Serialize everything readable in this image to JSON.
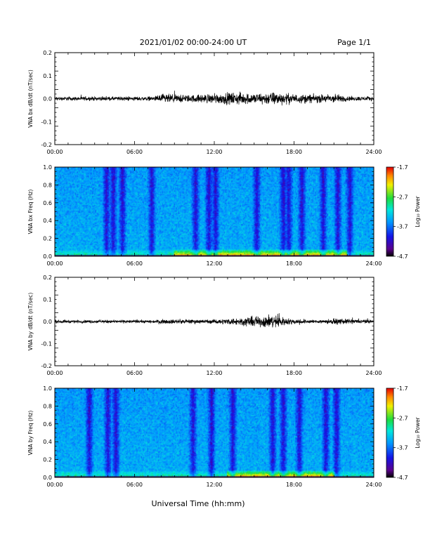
{
  "header": {
    "title": "2021/01/02  00:00-24:00 UT",
    "page": "Page 1/1"
  },
  "colorbar": {
    "label": "Log₁₀ Power",
    "ticks": [
      "-1.7",
      "-2.7",
      "-3.7",
      "-4.7"
    ],
    "range": [
      -4.7,
      -1.7
    ]
  },
  "xaxis": {
    "label": "Universal Time (hh:mm)",
    "ticks": [
      "00:00",
      "06:00",
      "12:00",
      "18:00",
      "24:00"
    ],
    "range_hours": [
      0,
      24
    ]
  },
  "chart_data": [
    {
      "type": "line",
      "ylabel": "VNA bx dB/dt (nT/sec)",
      "ylim": [
        -0.2,
        0.2
      ],
      "yticks": [
        "0.2",
        "0.1",
        "0.0",
        "-0.1",
        "-0.2"
      ],
      "xlim": [
        0,
        24
      ],
      "envelope": {
        "x_hours": [
          0,
          4,
          7.5,
          8,
          10,
          12,
          13.5,
          15,
          16.5,
          18,
          20,
          21,
          22,
          24
        ],
        "amplitude": [
          0.012,
          0.012,
          0.013,
          0.03,
          0.022,
          0.03,
          0.038,
          0.033,
          0.04,
          0.028,
          0.025,
          0.03,
          0.015,
          0.012
        ]
      }
    },
    {
      "type": "heatmap",
      "ylabel": "VNA bx Freq (Hz)",
      "ylim": [
        0,
        1.0
      ],
      "yticks": [
        "1.0",
        "0.8",
        "0.6",
        "0.4",
        "0.2",
        "0.0"
      ],
      "xlim": [
        0,
        24
      ],
      "colorbar_range": [
        -4.7,
        -1.7
      ],
      "dark_bands_hours": [
        3.9,
        4.4,
        5.1,
        7.3,
        10.6,
        11.6,
        12.1,
        15.2,
        17.2,
        17.6,
        18.6,
        20.2,
        21.3,
        22.2
      ],
      "low_freq_enhancement_hours": [
        9,
        22
      ]
    },
    {
      "type": "line",
      "ylabel": "VNA by dB/dt (nT/sec)",
      "ylim": [
        -0.2,
        0.2
      ],
      "yticks": [
        "0.2",
        "0.1",
        "0.0",
        "-0.1",
        "-0.2"
      ],
      "xlim": [
        0,
        24
      ],
      "envelope": {
        "x_hours": [
          0,
          7.5,
          8,
          12,
          13.5,
          14.5,
          15.5,
          16.5,
          17.5,
          19.5,
          20.5,
          21.5,
          24
        ],
        "amplitude": [
          0.01,
          0.01,
          0.014,
          0.013,
          0.022,
          0.03,
          0.035,
          0.045,
          0.02,
          0.01,
          0.015,
          0.018,
          0.01
        ]
      }
    },
    {
      "type": "heatmap",
      "ylabel": "VNA by Freq (Hz)",
      "ylim": [
        0,
        1.0
      ],
      "yticks": [
        "1.0",
        "0.8",
        "0.6",
        "0.4",
        "0.2",
        "0.0"
      ],
      "xlim": [
        0,
        24
      ],
      "colorbar_range": [
        -4.7,
        -1.7
      ],
      "dark_bands_hours": [
        2.6,
        4.0,
        4.6,
        10.4,
        11.8,
        13.4,
        16.4,
        17.2,
        18.4,
        20.4,
        21.2
      ],
      "low_freq_enhancement_hours": [
        13,
        21
      ]
    }
  ]
}
